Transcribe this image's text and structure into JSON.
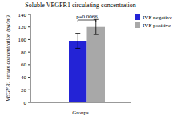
{
  "chart_data": {
    "type": "bar",
    "title": "Soluble VEGFR1 circulating concentration",
    "x_label": "Groups",
    "y_label": "VEGFR1 serum concentration (pg/ml)",
    "categories": [
      null
    ],
    "series": [
      {
        "name": "IVF negative",
        "color": "#2323d6",
        "values": [
          98
        ],
        "errors": [
          12
        ]
      },
      {
        "name": "IVF positive",
        "color": "#a8a8a8",
        "values": [
          120
        ],
        "errors": [
          12
        ]
      }
    ],
    "annotation": "p=0.0066",
    "ylim": [
      0,
      140
    ],
    "yticks": [
      0,
      20,
      40,
      60,
      80,
      100,
      120,
      140
    ],
    "grid": false,
    "legend": "right",
    "tick_labels": "y"
  }
}
